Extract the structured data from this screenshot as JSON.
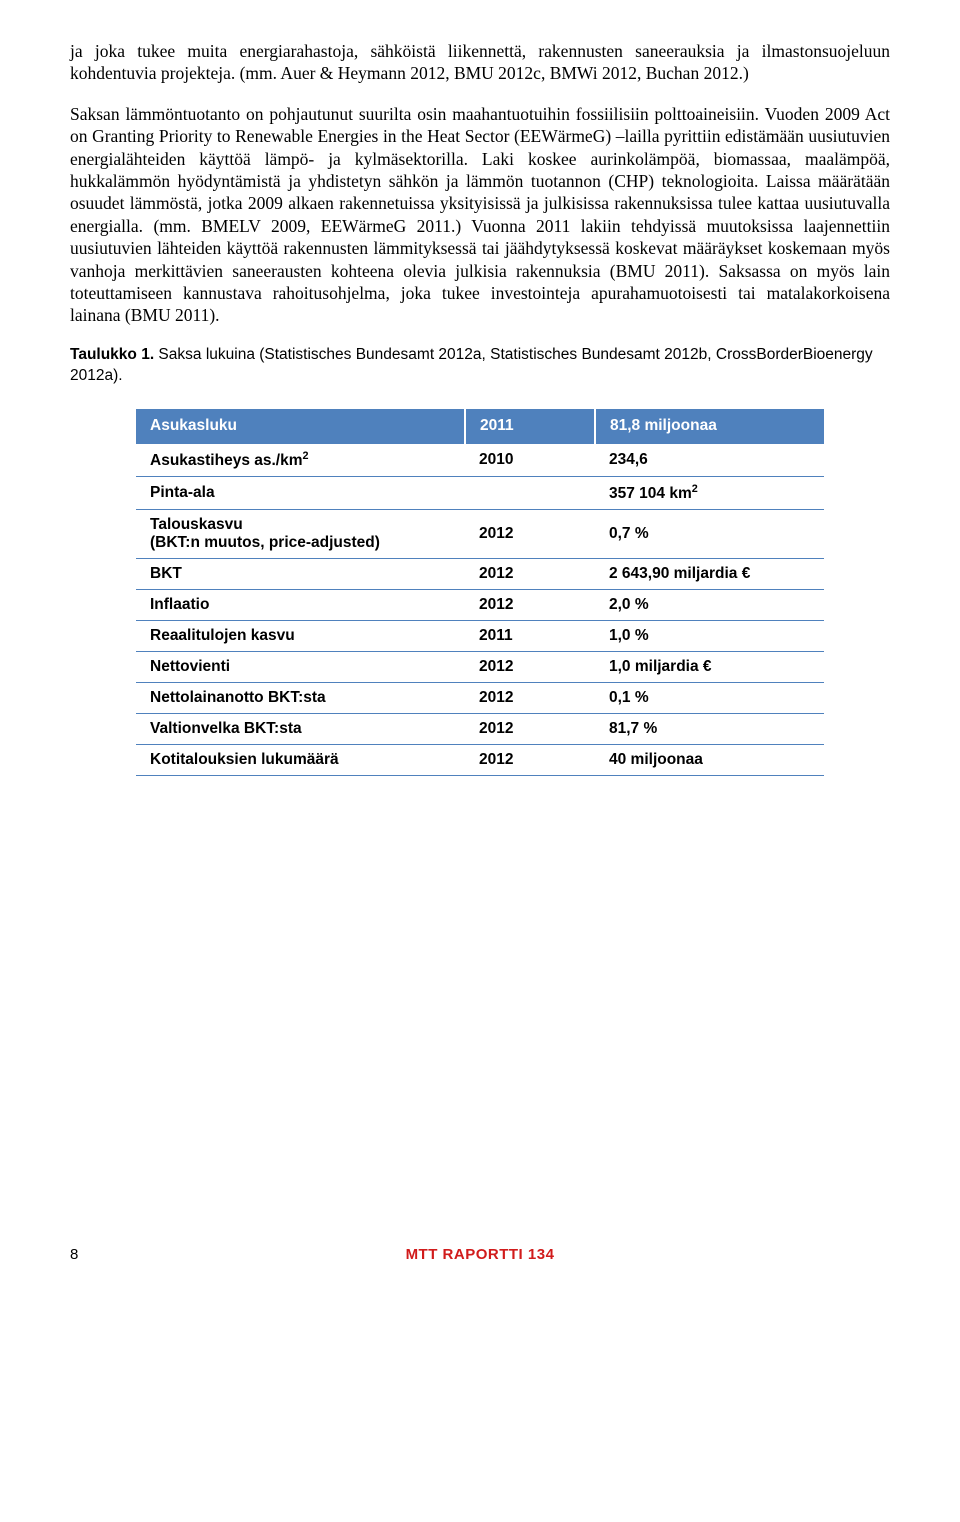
{
  "paragraphs": {
    "p1": "ja joka tukee muita energiarahastoja, sähköistä liikennettä, rakennusten saneerauksia ja ilmastonsuojeluun kohdentuvia projekteja. (mm. Auer & Heymann 2012, BMU 2012c, BMWi 2012, Buchan 2012.)",
    "p2": "Saksan lämmöntuotanto on pohjautunut suurilta osin maahantuotuihin fossiilisiin polttoaineisiin. Vuoden 2009 Act on Granting Priority to Renewable Energies in the Heat Sector (EEWärmeG) –lailla pyrittiin edistämään uusiutuvien energialähteiden käyttöä lämpö- ja kylmäsektorilla. Laki koskee aurinkolämpöä, biomassaa, maalämpöä, hukkalämmön hyödyntämistä ja yhdistetyn sähkön ja lämmön tuotannon (CHP) teknologioita. Laissa määrätään osuudet lämmöstä, jotka 2009 alkaen rakennetuissa yksityisissä ja julkisissa rakennuksissa tulee kattaa uusiutuvalla energialla. (mm. BMELV 2009, EEWärmeG 2011.) Vuonna 2011 lakiin tehdyissä muutoksissa laajennettiin uusiutuvien lähteiden käyttöä rakennusten lämmityksessä tai jäähdytyksessä koskevat määräykset koskemaan myös vanhoja merkittävien saneerausten kohteena olevia julkisia rakennuksia (BMU 2011). Saksassa on myös lain toteuttamiseen kannustava rahoitusohjelma, joka tukee investointeja apurahamuotoisesti tai matalakorkoisena lainana (BMU 2011)."
  },
  "caption": {
    "label": "Taulukko 1.",
    "text": " Saksa lukuina (Statistisches Bundesamt 2012a, Statistisches Bundesamt 2012b, CrossBorderBioenergy 2012a)."
  },
  "table": {
    "header": {
      "c0": "Asukasluku",
      "c1": "2011",
      "c2": "81,8 miljoonaa"
    },
    "rows": [
      {
        "label": "Asukastiheys as./km",
        "label_sup": "2",
        "year": "2010",
        "value": "234,6"
      },
      {
        "label": "Pinta-ala",
        "year": "",
        "value": "357 104 km",
        "value_sup": "2"
      },
      {
        "label": "Talouskasvu\n(BKT:n muutos, price-adjusted)",
        "year": "2012",
        "value": "0,7 %"
      },
      {
        "label": "BKT",
        "year": "2012",
        "value": "2 643,90 miljardia €"
      },
      {
        "label": "Inflaatio",
        "year": "2012",
        "value": "2,0 %"
      },
      {
        "label": "Reaalitulojen kasvu",
        "year": "2011",
        "value": "1,0 %"
      },
      {
        "label": "Nettovienti",
        "year": "2012",
        "value": "1,0 miljardia €"
      },
      {
        "label": "Nettolainanotto BKT:sta",
        "year": "2012",
        "value": "0,1 %"
      },
      {
        "label": "Valtionvelka BKT:sta",
        "year": "2012",
        "value": "81,7 %"
      },
      {
        "label": "Kotitalouksien lukumäärä",
        "year": "2012",
        "value": "40 miljoonaa"
      }
    ]
  },
  "footer": {
    "page": "8",
    "brand": "MTT RAPORTTI 134"
  },
  "colors": {
    "header_bg": "#4f81bd",
    "header_fg": "#ffffff",
    "rule": "#4f81bd",
    "brand": "#d11b1b"
  }
}
